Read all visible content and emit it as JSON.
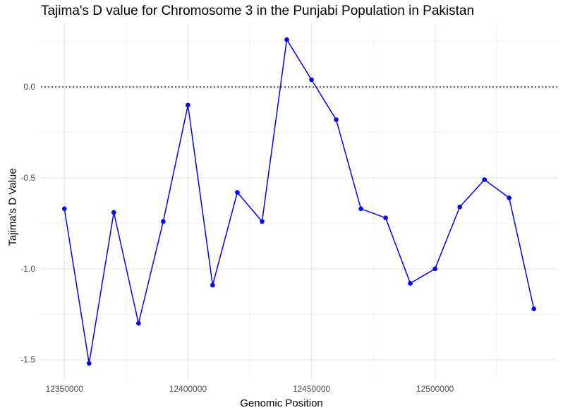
{
  "chart_data": {
    "type": "line",
    "title": "Tajima's D value for Chromosome 3 in the Punjabi Population in Pakistan",
    "xlabel": "Genomic Position",
    "ylabel": "Tajima's D Value",
    "x": [
      12350000,
      12360000,
      12370000,
      12380000,
      12390000,
      12400000,
      12410000,
      12420000,
      12430000,
      12440000,
      12450000,
      12460000,
      12470000,
      12480000,
      12490000,
      12500000,
      12510000,
      12520000,
      12530000,
      12540000
    ],
    "series": [
      {
        "values": [
          -0.67,
          -1.52,
          -0.69,
          -1.3,
          -0.74,
          -0.1,
          -1.09,
          -0.58,
          -0.74,
          0.26,
          0.04,
          -0.18,
          -0.67,
          -0.72,
          -1.08,
          -1.0,
          -0.66,
          -0.51,
          -0.61,
          -1.22
        ],
        "color": "#0000ff"
      }
    ],
    "xticks": [
      12350000,
      12400000,
      12450000,
      12500000
    ],
    "xtick_labels": [
      "12350000",
      "12400000",
      "12450000",
      "12500000"
    ],
    "yticks": [
      -1.5,
      -1.0,
      -0.5,
      0.0
    ],
    "ytick_labels": [
      "-1.5",
      "-1.0",
      "-0.5",
      "0.0"
    ],
    "xlim": [
      12340500,
      12549500
    ],
    "ylim": [
      -1.61,
      0.35
    ],
    "reference_line": {
      "y": 0.0,
      "style": "dotted"
    },
    "grid": true
  }
}
